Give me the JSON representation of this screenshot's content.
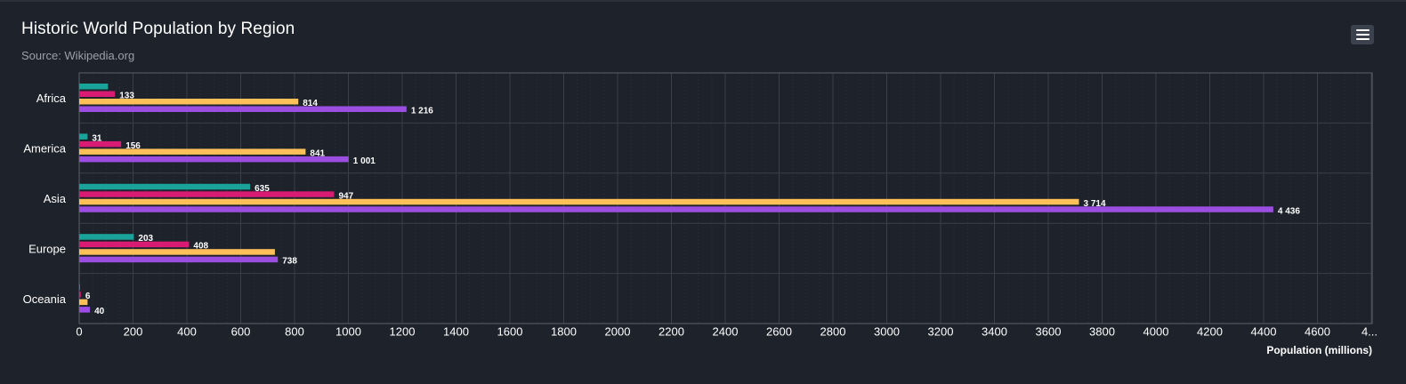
{
  "header": {
    "title": "Historic World Population by Region",
    "subtitle": "Source: Wikipedia.org"
  },
  "menu": {
    "icon": "hamburger-menu-icon"
  },
  "colors": {
    "background": "#1e222b",
    "gridline": "#3a3f49",
    "plot_border": "#5a606b"
  },
  "chart_data": {
    "type": "bar",
    "orientation": "horizontal",
    "title": "Historic World Population by Region",
    "subtitle": "Source: Wikipedia.org",
    "xlabel": "Population (millions)",
    "ylabel": "",
    "categories": [
      "Africa",
      "America",
      "Asia",
      "Europe",
      "Oceania"
    ],
    "series": [
      {
        "color": "#1aa39a",
        "values": [
          107,
          31,
          635,
          203,
          2
        ],
        "labels": [
          "",
          "31",
          "635",
          "203",
          ""
        ]
      },
      {
        "color": "#d81b73",
        "values": [
          133,
          156,
          947,
          408,
          6
        ],
        "labels": [
          "133",
          "156",
          "947",
          "408",
          "6"
        ]
      },
      {
        "color": "#ffc05a",
        "values": [
          814,
          841,
          3714,
          727,
          31
        ],
        "labels": [
          "814",
          "841",
          "3 714",
          "",
          ""
        ]
      },
      {
        "color": "#9b4ee0",
        "values": [
          1216,
          1001,
          4436,
          738,
          40
        ],
        "labels": [
          "1 216",
          "1 001",
          "4 436",
          "738",
          "40"
        ]
      }
    ],
    "xlim": [
      0,
      4800
    ],
    "x_ticks": [
      "0",
      "200",
      "400",
      "600",
      "800",
      "1000",
      "1200",
      "1400",
      "1600",
      "1800",
      "2000",
      "2200",
      "2400",
      "2600",
      "2800",
      "3000",
      "3200",
      "3400",
      "3600",
      "3800",
      "4000",
      "4200",
      "4400",
      "4600",
      "4..."
    ],
    "grid": true,
    "legend": "none"
  }
}
